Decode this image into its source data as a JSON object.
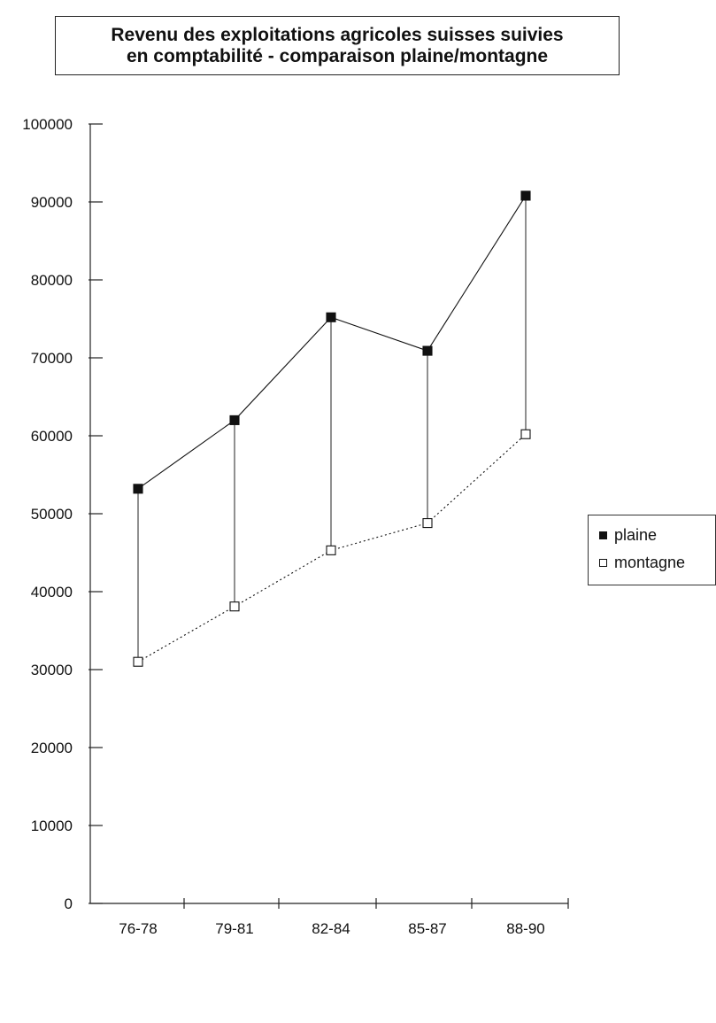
{
  "chart_data": {
    "type": "line",
    "title_lines": [
      "Revenu des exploitations agricoles suisses suivies",
      "en comptabilité - comparaison plaine/montagne"
    ],
    "xlabel": "",
    "ylabel": "",
    "categories": [
      "76-78",
      "79-81",
      "82-84",
      "85-87",
      "88-90"
    ],
    "yticks": [
      "0",
      "10000",
      "20000",
      "30000",
      "40000",
      "50000",
      "60000",
      "70000",
      "80000",
      "90000",
      "100000"
    ],
    "ylim": [
      0,
      100000
    ],
    "grid": false,
    "legend_position": "right",
    "series": [
      {
        "name": "plaine",
        "values": [
          53200,
          62000,
          75200,
          70900,
          90800
        ],
        "marker": "filled-square",
        "line": "solid",
        "color": "#111111"
      },
      {
        "name": "montagne",
        "values": [
          31000,
          38100,
          45300,
          48800,
          60200
        ],
        "marker": "open-square",
        "line": "dotted",
        "color": "#111111"
      }
    ],
    "drop_lines": true
  }
}
